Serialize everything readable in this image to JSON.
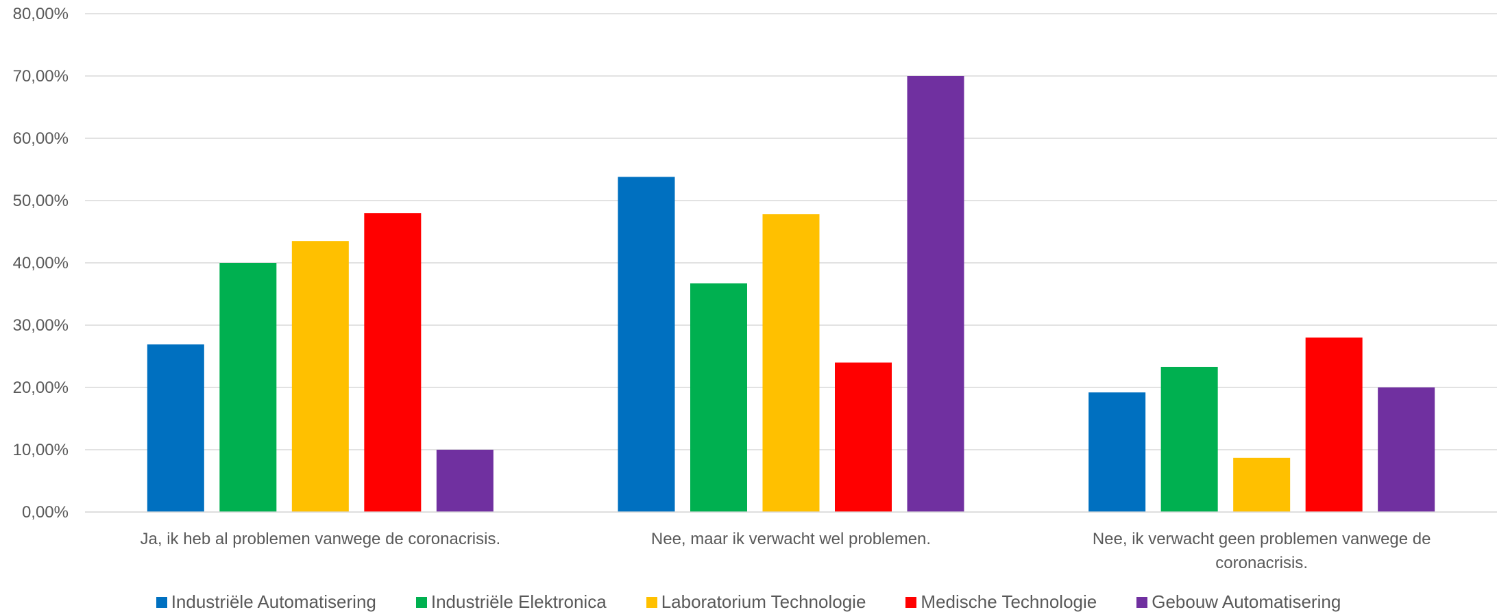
{
  "chart_data": {
    "type": "bar",
    "categories": [
      [
        "Ja, ik heb al problemen vanwege de coronacrisis."
      ],
      [
        "Nee, maar ik verwacht wel problemen."
      ],
      [
        "Nee, ik verwacht geen problemen vanwege de",
        "coronacrisis."
      ]
    ],
    "ylim": [
      0,
      80
    ],
    "yticks": [
      {
        "value": 0,
        "label": "0,00%"
      },
      {
        "value": 10,
        "label": "10,00%"
      },
      {
        "value": 20,
        "label": "20,00%"
      },
      {
        "value": 30,
        "label": "30,00%"
      },
      {
        "value": 40,
        "label": "40,00%"
      },
      {
        "value": 50,
        "label": "50,00%"
      },
      {
        "value": 60,
        "label": "60,00%"
      },
      {
        "value": 70,
        "label": "70,00%"
      },
      {
        "value": 80,
        "label": "80,00%"
      }
    ],
    "grid": true,
    "legend_position": "bottom",
    "series": [
      {
        "name": "Industriële Automatisering",
        "color": "#0070C0",
        "values": [
          26.9,
          53.8,
          19.2
        ]
      },
      {
        "name": "Industriële Elektronica",
        "color": "#00B050",
        "values": [
          40.0,
          36.7,
          23.3
        ]
      },
      {
        "name": "Laboratorium Technologie",
        "color": "#FFC000",
        "values": [
          43.5,
          47.8,
          8.7
        ]
      },
      {
        "name": "Medische Technologie",
        "color": "#FF0000",
        "values": [
          48.0,
          24.0,
          28.0
        ]
      },
      {
        "name": "Gebouw Automatisering",
        "color": "#7030A0",
        "values": [
          10.0,
          70.0,
          20.0
        ]
      }
    ]
  }
}
